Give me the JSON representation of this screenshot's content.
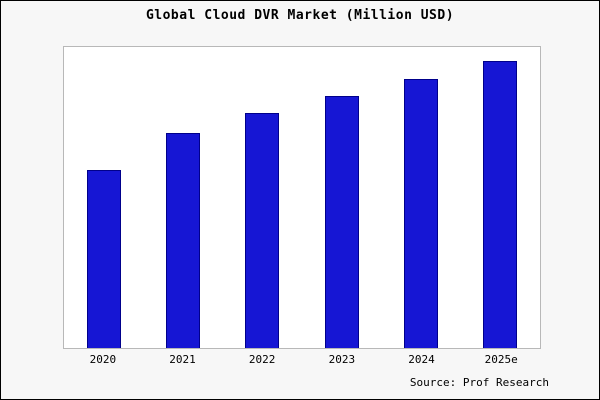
{
  "chart_data": {
    "type": "bar",
    "title": "Global Cloud DVR Market (Million USD)",
    "categories": [
      "2020",
      "2021",
      "2022",
      "2023",
      "2024",
      "2025e"
    ],
    "values": [
      62,
      75,
      82,
      88,
      94,
      100
    ],
    "ylim": [
      0,
      105
    ],
    "xlabel": "",
    "ylabel": "",
    "grid": false,
    "legend": "none",
    "bar_color": "#1616d4",
    "bar_edge_color": "#00008b"
  },
  "footer": {
    "source": "Source: Prof Research"
  }
}
